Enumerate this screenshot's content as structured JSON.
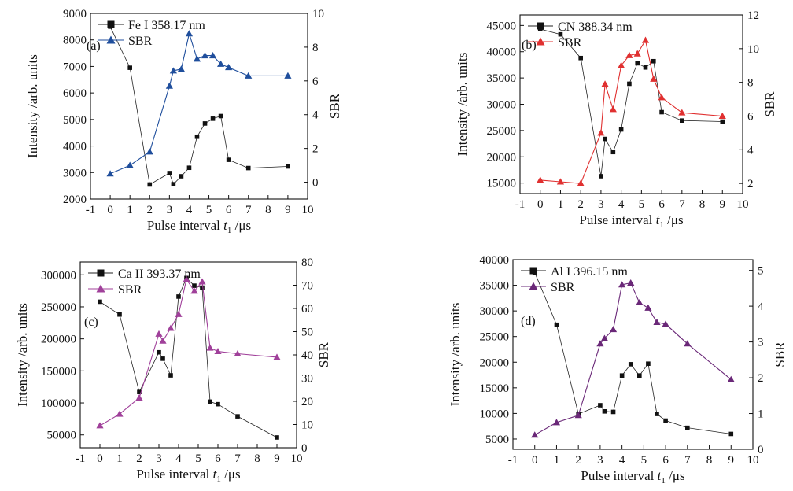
{
  "figure": {
    "x_axis_label": "Pulse interval",
    "x_axis_symbol": "t",
    "x_axis_subscript": "1",
    "x_axis_unit": "/μs",
    "left_axis_label": "Intensity /arb. units",
    "right_axis_label": "SBR"
  },
  "chart_data": [
    {
      "type": "line",
      "panel_letter": "(a)",
      "title": "",
      "xlabel": "Pulse interval t1 /μs",
      "ylabel": "Intensity /arb. units",
      "y2label": "SBR",
      "xlim": [
        -1,
        10
      ],
      "xticks": [
        -1,
        0,
        1,
        2,
        3,
        4,
        5,
        6,
        7,
        8,
        9,
        10
      ],
      "ylim": [
        2000,
        9000
      ],
      "yticks": [
        2000,
        3000,
        4000,
        5000,
        6000,
        7000,
        8000,
        9000
      ],
      "y2lim": [
        -1,
        10
      ],
      "y2ticks": [
        0,
        2,
        4,
        6,
        8,
        10
      ],
      "series_color": "#1f4e9c",
      "legend_position": "top-left",
      "series": [
        {
          "name": "Fe I 358.17 nm",
          "axis": "left",
          "marker": "square",
          "x": [
            0,
            1,
            2,
            3,
            3.2,
            3.6,
            4,
            4.4,
            4.8,
            5.2,
            5.6,
            6,
            7,
            9
          ],
          "values": [
            8500,
            6950,
            2550,
            2980,
            2560,
            2860,
            3180,
            4350,
            4850,
            5030,
            5130,
            3480,
            3170,
            3230
          ]
        },
        {
          "name": "SBR",
          "axis": "right",
          "marker": "triangle",
          "x": [
            0,
            1,
            2,
            3,
            3.2,
            3.6,
            4,
            4.4,
            4.8,
            5.2,
            5.6,
            6,
            7,
            9
          ],
          "values": [
            0.5,
            1.0,
            1.8,
            5.7,
            6.6,
            6.7,
            8.8,
            7.3,
            7.5,
            7.5,
            7.0,
            6.8,
            6.3,
            6.3
          ]
        }
      ]
    },
    {
      "type": "line",
      "panel_letter": "(b)",
      "title": "",
      "xlabel": "Pulse interval t1 /μs",
      "ylabel": "Intensity /arb. units",
      "y2label": "SBR",
      "xlim": [
        -1,
        10
      ],
      "xticks": [
        -1,
        0,
        1,
        2,
        3,
        4,
        5,
        6,
        7,
        8,
        9,
        10
      ],
      "ylim": [
        13000,
        47000
      ],
      "yticks": [
        15000,
        20000,
        25000,
        30000,
        35000,
        40000,
        45000
      ],
      "y2lim": [
        1.4,
        12
      ],
      "y2ticks": [
        2,
        4,
        6,
        8,
        10,
        12
      ],
      "series_color": "#e03030",
      "legend_position": "top-left",
      "series": [
        {
          "name": "CN 388.34 nm",
          "axis": "left",
          "marker": "square",
          "x": [
            0,
            1,
            2,
            3,
            3.2,
            3.6,
            4,
            4.4,
            4.8,
            5.2,
            5.6,
            6,
            7,
            9
          ],
          "values": [
            44300,
            43300,
            38800,
            16300,
            23400,
            20900,
            25200,
            33900,
            37800,
            37000,
            38200,
            28500,
            26900,
            26700
          ]
        },
        {
          "name": "SBR",
          "axis": "right",
          "marker": "triangle",
          "x": [
            0,
            1,
            2,
            3,
            3.2,
            3.6,
            4,
            4.4,
            4.8,
            5.2,
            5.6,
            6,
            7,
            9
          ],
          "values": [
            2.2,
            2.1,
            2.0,
            5.0,
            7.9,
            6.4,
            9.0,
            9.6,
            9.7,
            10.5,
            8.2,
            7.1,
            6.2,
            6.0
          ]
        }
      ]
    },
    {
      "type": "line",
      "panel_letter": "(c)",
      "title": "",
      "xlabel": "Pulse interval t1 /μs",
      "ylabel": "Intensity /arb. units",
      "y2label": "SBR",
      "xlim": [
        -1,
        10
      ],
      "xticks": [
        -1,
        0,
        1,
        2,
        3,
        4,
        5,
        6,
        7,
        8,
        9,
        10
      ],
      "ylim": [
        30000,
        320000
      ],
      "yticks": [
        50000,
        100000,
        150000,
        200000,
        250000,
        300000
      ],
      "y2lim": [
        0,
        80
      ],
      "y2ticks": [
        0,
        10,
        20,
        30,
        40,
        50,
        60,
        70,
        80
      ],
      "series_color": "#a0409a",
      "legend_position": "top-left",
      "series": [
        {
          "name": "Ca II 393.37 nm",
          "axis": "left",
          "marker": "square",
          "x": [
            0,
            1,
            2,
            3,
            3.2,
            3.6,
            4,
            4.4,
            4.8,
            5.2,
            5.6,
            6,
            7,
            9
          ],
          "values": [
            258000,
            238000,
            117000,
            179000,
            169000,
            143000,
            266000,
            295000,
            283000,
            280000,
            102000,
            98000,
            79000,
            46000
          ]
        },
        {
          "name": "SBR",
          "axis": "right",
          "marker": "triangle",
          "x": [
            0,
            1,
            2,
            3,
            3.2,
            3.6,
            4,
            4.4,
            4.8,
            5.2,
            5.6,
            6,
            7,
            9
          ],
          "values": [
            9.5,
            14.5,
            21.5,
            49,
            46,
            51.5,
            57.5,
            72.5,
            67.5,
            71.5,
            43,
            41.5,
            40.5,
            39
          ]
        }
      ]
    },
    {
      "type": "line",
      "panel_letter": "(d)",
      "title": "",
      "xlabel": "Pulse interval t1 /μs",
      "ylabel": "Intensity /arb. units",
      "y2label": "SBR",
      "xlim": [
        -1,
        10
      ],
      "xticks": [
        -1,
        0,
        1,
        2,
        3,
        4,
        5,
        6,
        7,
        8,
        9,
        10
      ],
      "ylim": [
        3000,
        40000
      ],
      "yticks": [
        5000,
        10000,
        15000,
        20000,
        25000,
        30000,
        35000,
        40000
      ],
      "y2lim": [
        0,
        5.3
      ],
      "y2ticks": [
        0,
        1,
        2,
        3,
        4,
        5
      ],
      "series_color": "#6a2878",
      "legend_position": "top-left",
      "series": [
        {
          "name": "Al I 396.15 nm",
          "axis": "left",
          "marker": "square",
          "x": [
            0,
            1,
            2,
            3,
            3.2,
            3.6,
            4,
            4.4,
            4.8,
            5.2,
            5.6,
            6,
            7,
            9
          ],
          "values": [
            37500,
            27300,
            9900,
            11600,
            10400,
            10300,
            17400,
            19600,
            17400,
            19700,
            9900,
            8600,
            7200,
            6000
          ]
        },
        {
          "name": "SBR",
          "axis": "right",
          "marker": "triangle",
          "x": [
            0,
            1,
            2,
            3,
            3.2,
            3.6,
            4,
            4.4,
            4.8,
            5.2,
            5.6,
            6,
            7,
            9
          ],
          "values": [
            0.4,
            0.75,
            0.95,
            2.95,
            3.1,
            3.35,
            4.6,
            4.65,
            4.1,
            3.95,
            3.55,
            3.5,
            2.95,
            1.95
          ]
        }
      ]
    }
  ]
}
